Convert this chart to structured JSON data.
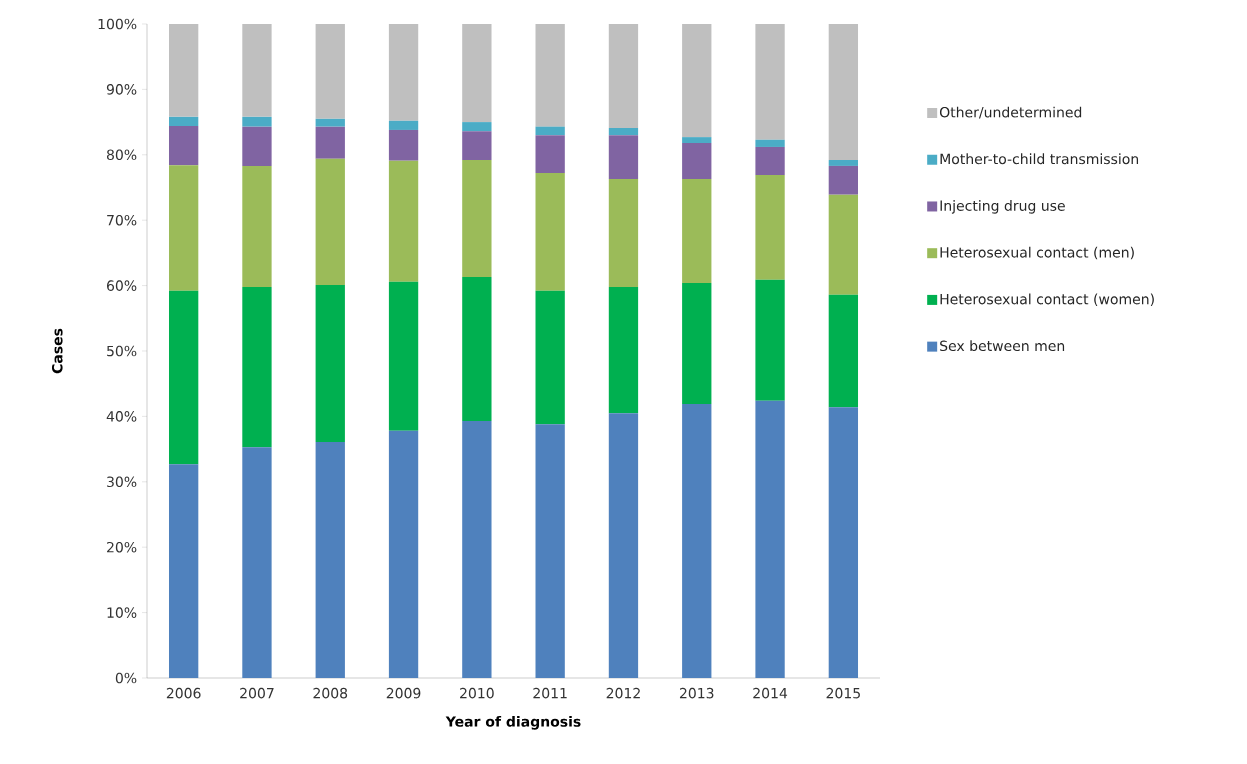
{
  "chart_data": {
    "type": "bar",
    "stacked": true,
    "xlabel": "Year of diagnosis",
    "ylabel": "Cases",
    "categories": [
      "2006",
      "2007",
      "2008",
      "2009",
      "2010",
      "2011",
      "2012",
      "2013",
      "2014",
      "2015"
    ],
    "series": [
      {
        "name": "Sex between men",
        "color": "#4f81bd",
        "values": [
          32.7,
          35.3,
          36.1,
          37.8,
          39.3,
          38.8,
          40.5,
          41.9,
          42.4,
          41.4
        ]
      },
      {
        "name": "Heterosexual contact (women)",
        "color": "#00b050",
        "values": [
          26.5,
          24.5,
          24.0,
          22.8,
          22.0,
          20.4,
          19.3,
          18.5,
          18.5,
          17.2
        ]
      },
      {
        "name": "Heterosexual contact (men)",
        "color": "#9bbb59",
        "values": [
          19.2,
          18.5,
          19.3,
          18.5,
          17.9,
          18.0,
          16.5,
          15.9,
          16.0,
          15.3
        ]
      },
      {
        "name": "Injecting drug use",
        "color": "#8064a2",
        "values": [
          6.0,
          6.0,
          4.9,
          4.7,
          4.4,
          5.8,
          6.7,
          5.5,
          4.3,
          4.4
        ]
      },
      {
        "name": "Mother-to-child transmission",
        "color": "#4bacc6",
        "values": [
          1.4,
          1.5,
          1.2,
          1.4,
          1.4,
          1.3,
          1.1,
          0.9,
          1.1,
          0.9
        ]
      },
      {
        "name": "Other/undetermined",
        "color": "#bfbfbf",
        "values": [
          14.2,
          14.2,
          14.5,
          14.8,
          15.0,
          15.7,
          15.9,
          17.3,
          17.7,
          20.8
        ]
      }
    ],
    "ylim": [
      0,
      100
    ],
    "yticks": [
      {
        "value": 0,
        "label": "0%"
      },
      {
        "value": 10,
        "label": "10%"
      },
      {
        "value": 20,
        "label": "20%"
      },
      {
        "value": 30,
        "label": "30%"
      },
      {
        "value": 40,
        "label": "40%"
      },
      {
        "value": 50,
        "label": "50%"
      },
      {
        "value": 60,
        "label": "60%"
      },
      {
        "value": 70,
        "label": "70%"
      },
      {
        "value": 80,
        "label": "80%"
      },
      {
        "value": 90,
        "label": "90%"
      },
      {
        "value": 100,
        "label": "100%"
      }
    ],
    "legend": "right"
  }
}
